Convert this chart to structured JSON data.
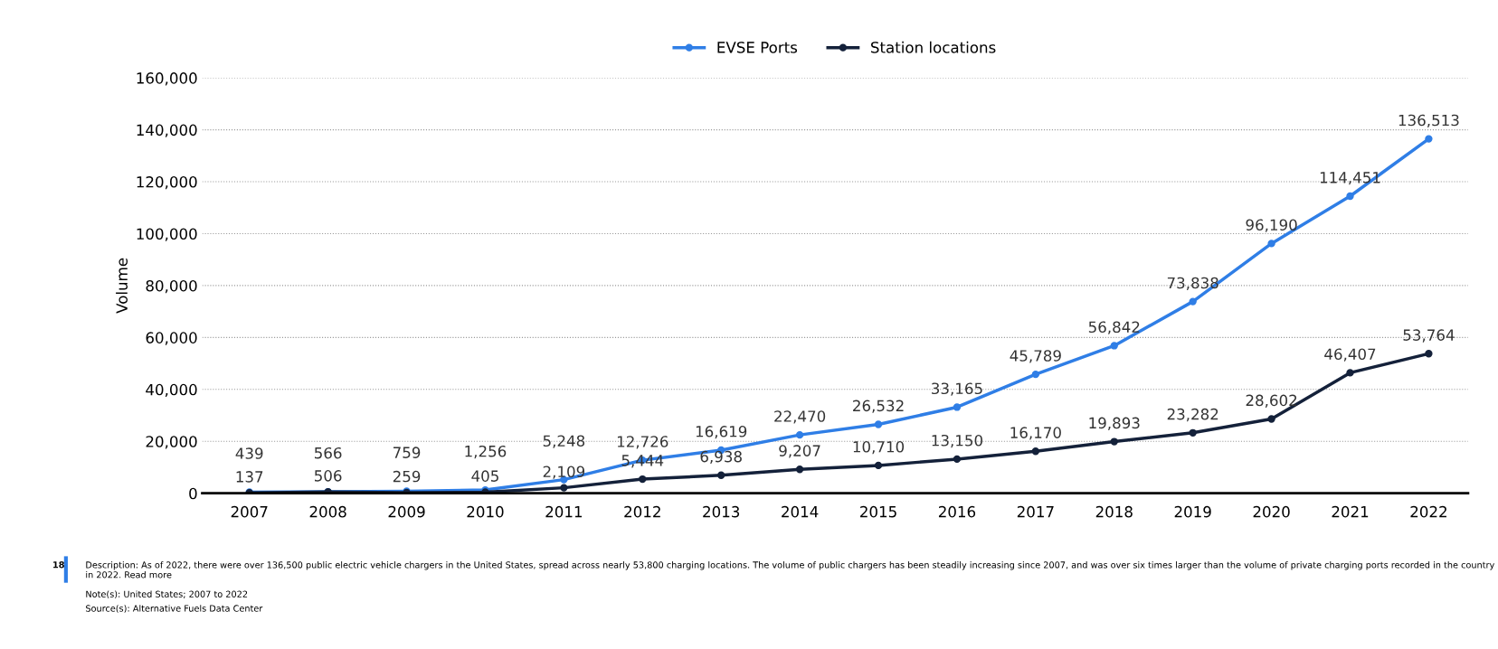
{
  "chart_data": {
    "type": "line",
    "ylabel": "Volume",
    "categories": [
      "2007",
      "2008",
      "2009",
      "2010",
      "2011",
      "2012",
      "2013",
      "2014",
      "2015",
      "2016",
      "2017",
      "2018",
      "2019",
      "2020",
      "2021",
      "2022"
    ],
    "series": [
      {
        "name": "EVSE Ports",
        "color": "#2f7ee6",
        "values": [
          439,
          566,
          759,
          1256,
          5248,
          12726,
          16619,
          22470,
          26532,
          33165,
          45789,
          56842,
          73838,
          96190,
          114451,
          136513
        ],
        "value_labels": [
          "439",
          "566",
          "759",
          "1,256",
          "5,248",
          "12,726",
          "16,619",
          "22,470",
          "26,532",
          "33,165",
          "45,789",
          "56,842",
          "73,838",
          "96,190",
          "114,451",
          "136,513"
        ]
      },
      {
        "name": "Station locations",
        "color": "#14213a",
        "values": [
          137,
          506,
          259,
          405,
          2109,
          5444,
          6938,
          9207,
          10710,
          13150,
          16170,
          19893,
          23282,
          28602,
          46407,
          53764
        ],
        "value_labels": [
          "137",
          "506",
          "259",
          "405",
          "2,109",
          "5,444",
          "6,938",
          "9,207",
          "10,710",
          "13,150",
          "16,170",
          "19,893",
          "23,282",
          "28,602",
          "46,407",
          "53,764"
        ]
      }
    ],
    "ylim": [
      0,
      160000
    ],
    "yticks": [
      {
        "value": 0,
        "label": "0"
      },
      {
        "value": 20000,
        "label": "20,000"
      },
      {
        "value": 40000,
        "label": "40,000"
      },
      {
        "value": 60000,
        "label": "60,000"
      },
      {
        "value": 80000,
        "label": "80,000"
      },
      {
        "value": 100000,
        "label": "100,000"
      },
      {
        "value": 120000,
        "label": "120,000"
      },
      {
        "value": 140000,
        "label": "140,000"
      },
      {
        "value": 160000,
        "label": "160,000"
      }
    ],
    "grid": "y",
    "legend": "top",
    "marker": "circle",
    "line_style": "solid",
    "annotations": [
      "18",
      "Description: As of 2022, there were over 136,500 public electric vehicle chargers in the United States, spread across nearly 53,800 charging locations. The volume of public chargers has been steadily increasing since 2007, and was over six times larger than the volume of private charging ports recorded in the country in 2022. Read more",
      "Note(s): United States; 2007 to 2022",
      "Source(s): Alternative Fuels Data Center"
    ]
  }
}
